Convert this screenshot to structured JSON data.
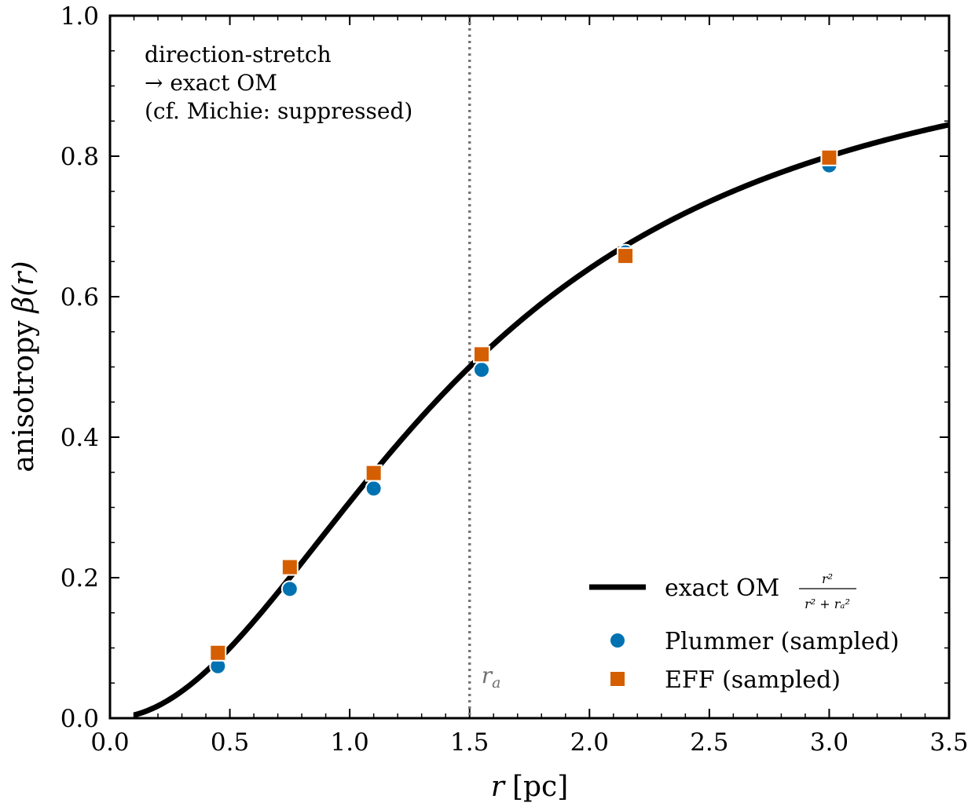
{
  "chart_data": {
    "type": "line",
    "xlabel_var": "r",
    "xlabel_unit": "[pc]",
    "ylabel_text": "anisotropy",
    "ylabel_math": "β(r)",
    "xlim": [
      0.0,
      3.5
    ],
    "ylim": [
      0.0,
      1.0
    ],
    "xticks": [
      "0.0",
      "0.5",
      "1.0",
      "1.5",
      "2.0",
      "2.5",
      "3.0",
      "3.5"
    ],
    "yticks": [
      "0.0",
      "0.2",
      "0.4",
      "0.6",
      "0.8",
      "1.0"
    ],
    "grid": false,
    "legend_position": "lower-right",
    "annotation": [
      "direction-stretch",
      "→ exact OM",
      "(cf. Michie: suppressed)"
    ],
    "vline": {
      "x": 1.5,
      "label": "r_a",
      "style": "dotted",
      "color": "#777777"
    },
    "curve": {
      "name": "exact OM",
      "formula": "r²/(r²+r_a²)",
      "r_a": 1.5,
      "x_start": 0.1,
      "x_end": 3.5,
      "color": "#000000"
    },
    "series": [
      {
        "name": "Plummer (sampled)",
        "marker": "circle",
        "color": "#0072b2",
        "x": [
          0.45,
          0.75,
          1.1,
          1.55,
          2.15,
          3.0
        ],
        "y": [
          0.074,
          0.184,
          0.327,
          0.496,
          0.663,
          0.787
        ]
      },
      {
        "name": "EFF (sampled)",
        "marker": "square",
        "color": "#d55e00",
        "x": [
          0.45,
          0.75,
          1.1,
          1.55,
          2.15,
          3.0
        ],
        "y": [
          0.093,
          0.215,
          0.349,
          0.518,
          0.658,
          0.798
        ]
      }
    ]
  }
}
